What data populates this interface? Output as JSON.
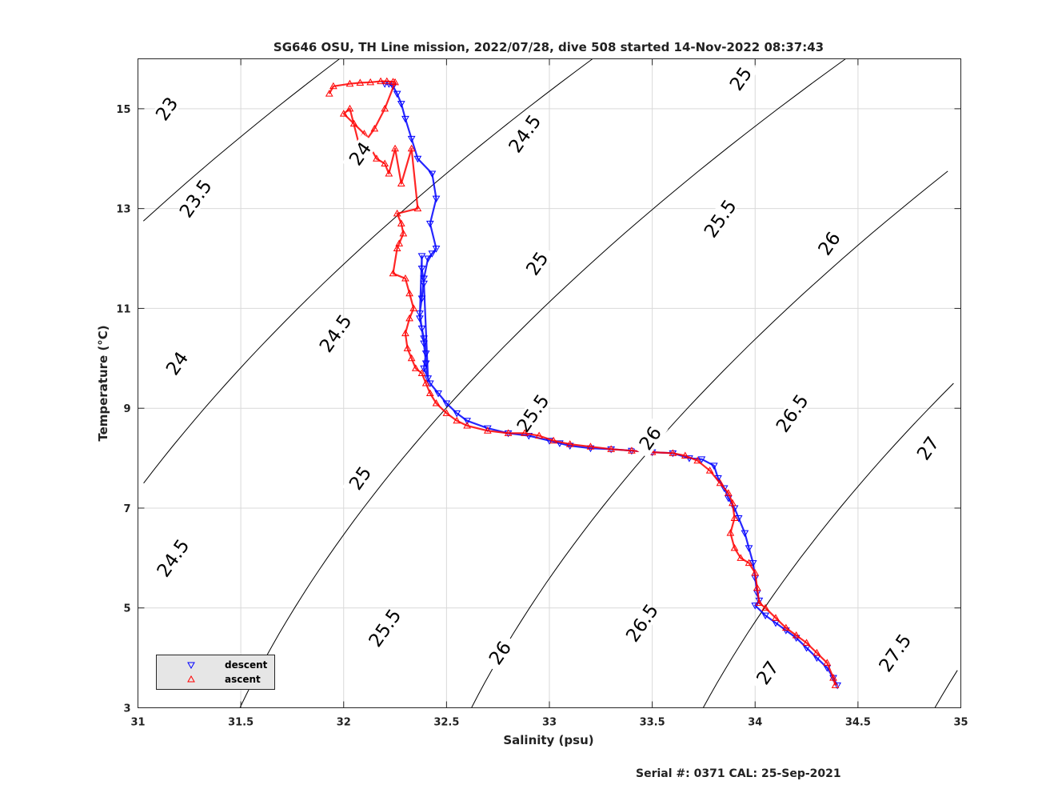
{
  "chart_data": {
    "type": "scatter",
    "title": "SG646 OSU, TH Line mission, 2022/07/28, dive 508 started 14-Nov-2022 08:37:43",
    "xlabel": "Salinity (psu)",
    "ylabel": "Temperature (°C)",
    "xlim": [
      31,
      35
    ],
    "ylim": [
      3,
      16
    ],
    "x_ticks": [
      "31",
      "31.5",
      "32",
      "32.5",
      "33",
      "33.5",
      "34",
      "34.5",
      "35"
    ],
    "y_ticks": [
      "3",
      "5",
      "7",
      "9",
      "11",
      "13",
      "15"
    ],
    "grid": true,
    "legend_position": "bottom-left",
    "colors": {
      "descent": "#0000ff",
      "ascent": "#ff0000",
      "contour": "#000000",
      "grid": "#d9d9d9"
    },
    "density_contours": {
      "levels": [
        23,
        23.5,
        24,
        24.5,
        25,
        25.5,
        26,
        26.5,
        27,
        27.5
      ],
      "labels": [
        {
          "text": "23",
          "s": 31.14,
          "t": 15.0
        },
        {
          "text": "23.5",
          "s": 31.28,
          "t": 13.2
        },
        {
          "text": "24",
          "s": 31.19,
          "t": 9.9
        },
        {
          "text": "24",
          "s": 32.08,
          "t": 14.1
        },
        {
          "text": "24.5",
          "s": 31.17,
          "t": 6.0
        },
        {
          "text": "24.5",
          "s": 31.96,
          "t": 10.5
        },
        {
          "text": "24.5",
          "s": 32.88,
          "t": 14.5
        },
        {
          "text": "25",
          "s": 32.08,
          "t": 7.6
        },
        {
          "text": "25",
          "s": 32.94,
          "t": 11.9
        },
        {
          "text": "25",
          "s": 33.93,
          "t": 15.6
        },
        {
          "text": "25.5",
          "s": 32.2,
          "t": 4.6
        },
        {
          "text": "25.5",
          "s": 32.92,
          "t": 8.9
        },
        {
          "text": "25.5",
          "s": 33.83,
          "t": 12.8
        },
        {
          "text": "26",
          "s": 32.76,
          "t": 4.1
        },
        {
          "text": "26",
          "s": 33.49,
          "t": 8.4
        },
        {
          "text": "26",
          "s": 34.36,
          "t": 12.3
        },
        {
          "text": "26.5",
          "s": 33.45,
          "t": 4.7
        },
        {
          "text": "26.5",
          "s": 34.18,
          "t": 8.9
        },
        {
          "text": "27",
          "s": 34.06,
          "t": 3.7
        },
        {
          "text": "27",
          "s": 34.84,
          "t": 8.2
        },
        {
          "text": "27.5",
          "s": 34.68,
          "t": 4.1
        }
      ]
    },
    "series": [
      {
        "name": "descent",
        "marker": "triangle-down",
        "color": "#0000ff",
        "x": [
          32.2,
          32.22,
          32.24,
          32.26,
          32.28,
          32.3,
          32.33,
          32.36,
          32.43,
          32.45,
          32.42,
          32.45,
          32.43,
          32.41,
          32.39,
          32.38,
          32.37,
          32.38,
          32.39,
          32.4,
          32.41,
          32.39,
          32.38,
          32.38,
          32.37,
          32.39,
          32.4,
          32.39,
          32.42,
          32.46,
          32.5,
          32.55,
          32.6,
          32.7,
          32.8,
          32.9,
          33.0,
          33.05,
          33.1,
          33.2,
          33.3,
          33.4,
          33.5,
          33.6,
          33.68,
          33.74,
          33.8,
          33.82,
          33.85,
          33.87,
          33.9,
          33.92,
          33.95,
          33.97,
          33.99,
          34.0,
          34.01,
          34.02,
          34.0,
          34.05,
          34.1,
          34.15,
          34.2,
          34.25,
          34.3,
          34.35,
          34.38,
          34.4
        ],
        "y": [
          15.5,
          15.5,
          15.45,
          15.3,
          15.1,
          14.8,
          14.4,
          14.0,
          13.7,
          13.2,
          12.7,
          12.2,
          12.1,
          12.0,
          11.6,
          11.2,
          10.9,
          10.6,
          10.3,
          9.9,
          9.6,
          11.5,
          11.8,
          12.05,
          10.8,
          10.4,
          10.1,
          9.8,
          9.5,
          9.3,
          9.1,
          8.9,
          8.75,
          8.6,
          8.5,
          8.45,
          8.35,
          8.3,
          8.25,
          8.2,
          8.18,
          8.15,
          8.12,
          8.1,
          8.0,
          7.98,
          7.85,
          7.6,
          7.4,
          7.2,
          7.0,
          6.8,
          6.5,
          6.2,
          5.9,
          5.6,
          5.3,
          5.15,
          5.05,
          4.85,
          4.7,
          4.55,
          4.4,
          4.2,
          4.0,
          3.8,
          3.6,
          3.45
        ]
      },
      {
        "name": "ascent",
        "marker": "triangle-up",
        "color": "#ff0000",
        "x": [
          31.93,
          31.95,
          32.03,
          32.08,
          32.13,
          32.18,
          32.21,
          32.24,
          32.25,
          32.2,
          32.15,
          32.08,
          32.03,
          32.0,
          32.05,
          32.1,
          32.12,
          32.16,
          32.2,
          32.22,
          32.25,
          32.28,
          32.33,
          32.36,
          32.26,
          32.28,
          32.29,
          32.27,
          32.26,
          32.24,
          32.3,
          32.32,
          32.34,
          32.32,
          32.3,
          32.31,
          32.33,
          32.35,
          32.38,
          32.4,
          32.42,
          32.45,
          32.5,
          32.55,
          32.6,
          32.7,
          32.8,
          32.88,
          32.95,
          33.02,
          33.1,
          33.2,
          33.3,
          33.4,
          33.5,
          33.6,
          33.66,
          33.72,
          33.78,
          33.83,
          33.87,
          33.89,
          33.9,
          33.88,
          33.9,
          33.93,
          33.97,
          34.0,
          34.01,
          34.02,
          34.05,
          34.1,
          34.15,
          34.2,
          34.25,
          34.3,
          34.35,
          34.38,
          34.39
        ],
        "y": [
          15.3,
          15.45,
          15.5,
          15.52,
          15.53,
          15.55,
          15.55,
          15.54,
          15.53,
          15.0,
          14.6,
          14.2,
          15.0,
          14.9,
          14.7,
          14.5,
          14.3,
          14.0,
          13.9,
          13.7,
          14.2,
          13.5,
          14.2,
          13.0,
          12.9,
          12.7,
          12.5,
          12.3,
          12.2,
          11.7,
          11.6,
          11.3,
          11.0,
          10.8,
          10.5,
          10.2,
          10.0,
          9.8,
          9.7,
          9.5,
          9.3,
          9.1,
          8.9,
          8.75,
          8.65,
          8.55,
          8.5,
          8.5,
          8.45,
          8.35,
          8.28,
          8.23,
          8.18,
          8.15,
          8.12,
          8.1,
          8.05,
          7.95,
          7.75,
          7.5,
          7.3,
          7.1,
          6.8,
          6.5,
          6.2,
          6.0,
          5.9,
          5.7,
          5.4,
          5.1,
          5.0,
          4.8,
          4.6,
          4.45,
          4.3,
          4.1,
          3.9,
          3.6,
          3.45
        ]
      }
    ]
  },
  "footer": "Serial #: 0371  CAL: 25-Sep-2021"
}
